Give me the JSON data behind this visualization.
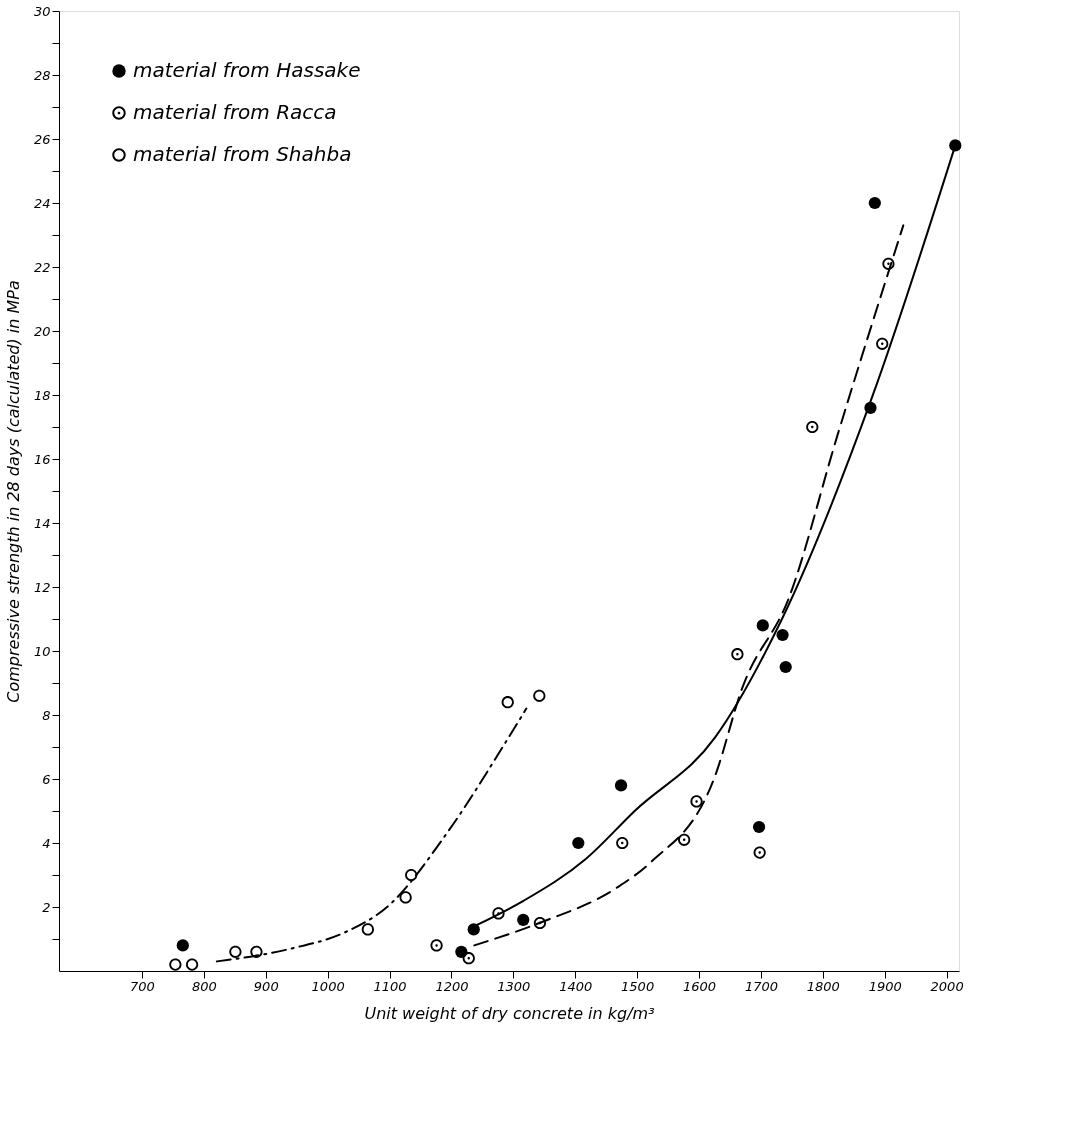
{
  "chart_data": {
    "type": "scatter",
    "xlabel": "Unit weight of dry concrete in kg/m³",
    "ylabel": "Compressive strength in 28 days (calculated) in MPa",
    "xlim": [
      566,
      2020
    ],
    "ylim": [
      0,
      30
    ],
    "xticks": [
      700,
      800,
      900,
      1000,
      1100,
      1200,
      1300,
      1400,
      1500,
      1600,
      1700,
      1800,
      1900,
      2000
    ],
    "yticks": [
      {
        "value": 1,
        "label": null
      },
      2,
      {
        "value": 3,
        "label": null
      },
      4,
      {
        "value": 5,
        "label": null
      },
      6,
      {
        "value": 7,
        "label": null
      },
      8,
      {
        "value": 9,
        "label": null
      },
      10,
      {
        "value": 11,
        "label": null
      },
      12,
      {
        "value": 13,
        "label": null
      },
      14,
      {
        "value": 15,
        "label": null
      },
      16,
      {
        "value": 17,
        "label": null
      },
      18,
      {
        "value": 19,
        "label": null
      },
      20,
      {
        "value": 21,
        "label": null
      },
      22,
      {
        "value": 23,
        "label": null
      },
      24,
      {
        "value": 25,
        "label": null
      },
      26,
      {
        "value": 27,
        "label": null
      },
      28,
      {
        "value": 29,
        "label": null
      },
      30
    ],
    "grid": false,
    "legend": "top left",
    "series": [
      {
        "name": "material from Hassake",
        "color": "#000000",
        "marker": "circle",
        "x": [
          766,
          1216,
          1236,
          1316,
          1405,
          1474,
          1697,
          1703,
          1735,
          1740,
          1877,
          1884,
          2014
        ],
        "values": [
          0.8,
          0.6,
          1.3,
          1.6,
          4.0,
          5.8,
          4.5,
          10.8,
          10.5,
          9.5,
          17.6,
          24.0,
          25.8
        ]
      },
      {
        "type": "line",
        "color": "#000000",
        "line_style": "solid",
        "x": [
          1237,
          1317,
          1417,
          1496,
          1626,
          1734,
          1879,
          2014
        ],
        "values": [
          1.4,
          2.2,
          3.5,
          5.0,
          7.3,
          11.0,
          17.9,
          25.8
        ]
      },
      {
        "name": "material from Racca",
        "color": "#000000",
        "marker": "circle_dot",
        "x": [
          1176,
          1228,
          1276,
          1343,
          1476,
          1576,
          1596,
          1662,
          1698,
          1783,
          1896,
          1906
        ],
        "values": [
          0.8,
          0.4,
          1.8,
          1.5,
          4.0,
          4.1,
          5.3,
          9.9,
          3.7,
          17.0,
          19.6,
          22.1
        ]
      },
      {
        "type": "line",
        "color": "#000000",
        "line_style": "dashed",
        "x": [
          1237,
          1342,
          1467,
          1522,
          1626,
          1669,
          1746,
          1823,
          1930
        ],
        "values": [
          0.8,
          1.5,
          2.6,
          3.4,
          6.1,
          8.8,
          11.7,
          16.7,
          23.3
        ]
      },
      {
        "name": "material from Shahba",
        "color": "#000000",
        "marker": "circle_open",
        "x": [
          754,
          781,
          851,
          885,
          1065,
          1126,
          1135,
          1291,
          1342
        ],
        "values": [
          0.2,
          0.2,
          0.6,
          0.6,
          1.3,
          2.3,
          3.0,
          8.4,
          8.6
        ]
      },
      {
        "type": "line",
        "color": "#000000",
        "line_style": "dashdot",
        "x": [
          821,
          941,
          1027,
          1096,
          1196,
          1286,
          1321
        ],
        "values": [
          0.3,
          0.7,
          1.2,
          2.0,
          4.4,
          7.1,
          8.2
        ]
      }
    ]
  }
}
